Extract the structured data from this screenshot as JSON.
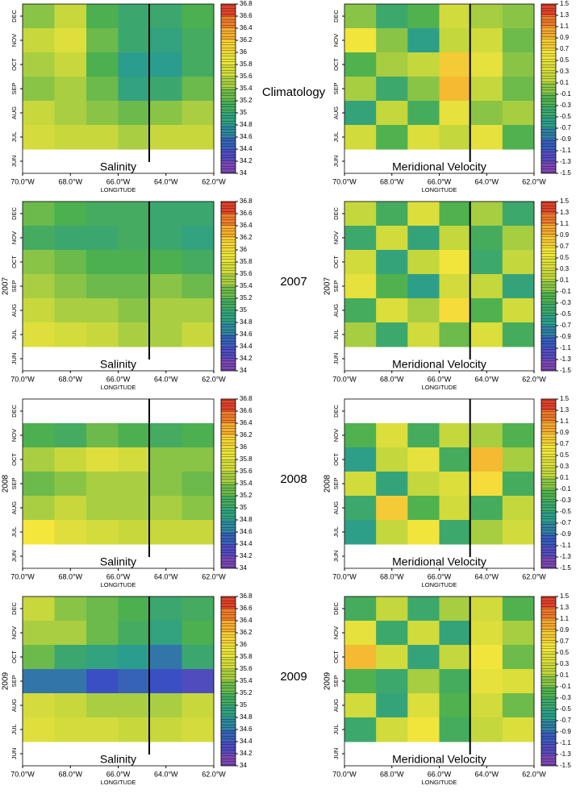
{
  "chart_data": [
    {
      "type": "heatmap",
      "title": "Salinity",
      "row_label": "Climatology",
      "xlabel": "LONGITUDE",
      "xlim": [
        -70,
        -62
      ],
      "xticks": [
        {
          "value": -70,
          "label": "70.0°W"
        },
        {
          "value": -68,
          "label": "68.0°W"
        },
        {
          "value": -66,
          "label": "66.0°W"
        },
        {
          "value": -64,
          "label": "64.0°W"
        },
        {
          "value": -62,
          "label": "62.0°W"
        }
      ],
      "categories": [
        "DEC",
        "NOV",
        "OCT",
        "SEP",
        "AUG",
        "JUL",
        "JUN"
      ],
      "z": [
        [
          35.4,
          35.6,
          35.2,
          35.0,
          35.0,
          35.2
        ],
        [
          35.6,
          35.8,
          35.3,
          35.0,
          34.9,
          35.1
        ],
        [
          35.5,
          35.6,
          35.2,
          34.8,
          34.8,
          35.1
        ],
        [
          35.4,
          35.5,
          35.3,
          34.9,
          35.0,
          35.3
        ],
        [
          35.6,
          35.5,
          35.4,
          35.3,
          35.4,
          35.5
        ],
        [
          35.7,
          35.6,
          35.6,
          35.5,
          35.6,
          35.6
        ],
        [
          null,
          null,
          null,
          null,
          null,
          null
        ]
      ],
      "zlim": [
        34,
        36.8
      ],
      "zticks": [
        34,
        34.2,
        34.4,
        34.6,
        34.8,
        35,
        35.2,
        35.4,
        35.6,
        35.8,
        36,
        36.2,
        36.4,
        36.6,
        36.8
      ],
      "colormap": [
        "#8e44ad",
        "#3b4fc4",
        "#2a9d8f",
        "#4cb050",
        "#c8d83c",
        "#f5e63c",
        "#f39c2c",
        "#d7262a"
      ],
      "vline": -64.7
    },
    {
      "type": "heatmap",
      "title": "Meridional Velocity",
      "xlabel": "LONGITUDE",
      "xlim": [
        -70,
        -62
      ],
      "xticks": [
        {
          "value": -70,
          "label": "70.0°W"
        },
        {
          "value": -68,
          "label": "68.0°W"
        },
        {
          "value": -66,
          "label": "66.0°W"
        },
        {
          "value": -64,
          "label": "64.0°W"
        },
        {
          "value": -62,
          "label": "62.0°W"
        }
      ],
      "categories": [
        "DEC",
        "NOV",
        "OCT",
        "SEP",
        "AUG",
        "JUL",
        "JUN"
      ],
      "z": [
        [
          0,
          -0.4,
          -0.2,
          0.3,
          0.1,
          0
        ],
        [
          0.6,
          0,
          -0.6,
          0.2,
          0.3,
          -0.1
        ],
        [
          -0.2,
          0.1,
          0.2,
          0.8,
          0.5,
          0
        ],
        [
          0.1,
          -0.4,
          0,
          0.9,
          0.2,
          -0.1
        ],
        [
          -0.5,
          0.2,
          -0.3,
          0.5,
          0,
          0.1
        ],
        [
          0.3,
          -0.2,
          0.4,
          0.2,
          0.5,
          -0.2
        ],
        [
          null,
          null,
          null,
          null,
          null,
          null
        ]
      ],
      "zlim": [
        -1.5,
        1.5
      ],
      "zticks": [
        -1.5,
        -1.3,
        -1.1,
        -0.9,
        -0.7,
        -0.5,
        -0.3,
        -0.1,
        0.1,
        0.3,
        0.5,
        0.7,
        0.9,
        1.1,
        1.3,
        1.5
      ],
      "colormap": [
        "#8e44ad",
        "#3b4fc4",
        "#2a9d8f",
        "#4cb050",
        "#c8d83c",
        "#f5e63c",
        "#f39c2c",
        "#d7262a"
      ],
      "vline": -64.7
    },
    {
      "type": "heatmap",
      "title": "Salinity",
      "row_label": "2007",
      "ylabel": "2007",
      "xlabel": "LONGITUDE",
      "xlim": [
        -70,
        -62
      ],
      "xticks": [
        {
          "value": -70,
          "label": "70.0°W"
        },
        {
          "value": -68,
          "label": "68.0°W"
        },
        {
          "value": -66,
          "label": "66.0°W"
        },
        {
          "value": -64,
          "label": "64.0°W"
        },
        {
          "value": -62,
          "label": "62.0°W"
        }
      ],
      "categories": [
        "DEC",
        "NOV",
        "OCT",
        "SEP",
        "AUG",
        "JUL",
        "JUN"
      ],
      "z": [
        [
          35.3,
          35.2,
          35.1,
          35.1,
          35.0,
          35.0
        ],
        [
          35.1,
          35.0,
          35.0,
          35.1,
          35.0,
          34.9
        ],
        [
          35.4,
          35.3,
          35.2,
          35.2,
          35.2,
          35.1
        ],
        [
          35.5,
          35.4,
          35.3,
          35.3,
          35.4,
          35.3
        ],
        [
          35.6,
          35.5,
          35.5,
          35.4,
          35.5,
          35.5
        ],
        [
          35.8,
          35.7,
          35.6,
          35.5,
          35.5,
          35.6
        ],
        [
          null,
          null,
          null,
          null,
          null,
          null
        ]
      ],
      "zlim": [
        34,
        36.8
      ],
      "zticks": [
        34,
        34.2,
        34.4,
        34.6,
        34.8,
        35,
        35.2,
        35.4,
        35.6,
        35.8,
        36,
        36.2,
        36.4,
        36.6,
        36.8
      ],
      "colormap": [
        "#8e44ad",
        "#3b4fc4",
        "#2a9d8f",
        "#4cb050",
        "#c8d83c",
        "#f5e63c",
        "#f39c2c",
        "#d7262a"
      ],
      "vline": -64.7
    },
    {
      "type": "heatmap",
      "title": "Meridional Velocity",
      "ylabel": "2007",
      "xlabel": "LONGITUDE",
      "xlim": [
        -70,
        -62
      ],
      "xticks": [
        {
          "value": -70,
          "label": "70.0°W"
        },
        {
          "value": -68,
          "label": "68.0°W"
        },
        {
          "value": -66,
          "label": "66.0°W"
        },
        {
          "value": -64,
          "label": "64.0°W"
        },
        {
          "value": -62,
          "label": "62.0°W"
        }
      ],
      "categories": [
        "DEC",
        "NOV",
        "OCT",
        "SEP",
        "AUG",
        "JUL",
        "JUN"
      ],
      "z": [
        [
          0.2,
          -0.3,
          0.4,
          -0.2,
          0.1,
          -0.4
        ],
        [
          -0.4,
          0.3,
          -0.5,
          0.2,
          -0.3,
          0.1
        ],
        [
          0.3,
          -0.5,
          0.2,
          0.6,
          -0.4,
          0.2
        ],
        [
          0.5,
          -0.2,
          -0.6,
          0.3,
          0.2,
          -0.5
        ],
        [
          -0.3,
          0.4,
          0.1,
          0.7,
          -0.2,
          0.3
        ],
        [
          0.1,
          -0.4,
          0.3,
          -0.1,
          0.4,
          -0.3
        ],
        [
          null,
          null,
          null,
          null,
          null,
          null
        ]
      ],
      "zlim": [
        -1.5,
        1.5
      ],
      "zticks": [
        -1.5,
        -1.3,
        -1.1,
        -0.9,
        -0.7,
        -0.5,
        -0.3,
        -0.1,
        0.1,
        0.3,
        0.5,
        0.7,
        0.9,
        1.1,
        1.3,
        1.5
      ],
      "colormap": [
        "#8e44ad",
        "#3b4fc4",
        "#2a9d8f",
        "#4cb050",
        "#c8d83c",
        "#f5e63c",
        "#f39c2c",
        "#d7262a"
      ],
      "vline": -64.7
    },
    {
      "type": "heatmap",
      "title": "Salinity",
      "row_label": "2008",
      "ylabel": "2008",
      "xlabel": "LONGITUDE",
      "xlim": [
        -70,
        -62
      ],
      "xticks": [
        {
          "value": -70,
          "label": "70.0°W"
        },
        {
          "value": -68,
          "label": "68.0°W"
        },
        {
          "value": -66,
          "label": "66.0°W"
        },
        {
          "value": -64,
          "label": "64.0°W"
        },
        {
          "value": -62,
          "label": "62.0°W"
        }
      ],
      "categories": [
        "DEC",
        "NOV",
        "OCT",
        "SEP",
        "AUG",
        "JUL",
        "JUN"
      ],
      "z": [
        [
          null,
          null,
          null,
          null,
          null,
          null
        ],
        [
          35.2,
          35.1,
          35.3,
          35.2,
          35.1,
          35.2
        ],
        [
          35.5,
          35.6,
          35.8,
          35.7,
          35.4,
          35.4
        ],
        [
          35.3,
          35.4,
          35.5,
          35.5,
          35.4,
          35.3
        ],
        [
          35.5,
          35.6,
          35.5,
          35.5,
          35.5,
          35.4
        ],
        [
          36.0,
          35.8,
          35.7,
          35.6,
          35.6,
          35.6
        ],
        [
          null,
          null,
          null,
          null,
          null,
          null
        ]
      ],
      "zlim": [
        34,
        36.8
      ],
      "zticks": [
        34,
        34.2,
        34.4,
        34.6,
        34.8,
        35,
        35.2,
        35.4,
        35.6,
        35.8,
        36,
        36.2,
        36.4,
        36.6,
        36.8
      ],
      "colormap": [
        "#8e44ad",
        "#3b4fc4",
        "#2a9d8f",
        "#4cb050",
        "#c8d83c",
        "#f5e63c",
        "#f39c2c",
        "#d7262a"
      ],
      "vline": -64.7
    },
    {
      "type": "heatmap",
      "title": "Meridional Velocity",
      "ylabel": "2008",
      "xlabel": "LONGITUDE",
      "xlim": [
        -70,
        -62
      ],
      "xticks": [
        {
          "value": -70,
          "label": "70.0°W"
        },
        {
          "value": -68,
          "label": "68.0°W"
        },
        {
          "value": -66,
          "label": "66.0°W"
        },
        {
          "value": -64,
          "label": "64.0°W"
        },
        {
          "value": -62,
          "label": "62.0°W"
        }
      ],
      "categories": [
        "DEC",
        "NOV",
        "OCT",
        "SEP",
        "AUG",
        "JUL",
        "JUN"
      ],
      "z": [
        [
          null,
          null,
          null,
          null,
          null,
          null
        ],
        [
          -0.2,
          0.4,
          -0.3,
          0.2,
          0.1,
          -0.2
        ],
        [
          -0.6,
          0.2,
          0.5,
          -0.3,
          0.9,
          0.1
        ],
        [
          0.3,
          -0.5,
          0.2,
          0.4,
          0.7,
          -0.3
        ],
        [
          -0.4,
          0.8,
          -0.2,
          0.3,
          -0.3,
          0.2
        ],
        [
          -0.6,
          0.2,
          0.6,
          -0.4,
          0.1,
          0.3
        ],
        [
          null,
          null,
          null,
          null,
          null,
          null
        ]
      ],
      "zlim": [
        -1.5,
        1.5
      ],
      "zticks": [
        -1.5,
        -1.3,
        -1.1,
        -0.9,
        -0.7,
        -0.5,
        -0.3,
        -0.1,
        0.1,
        0.3,
        0.5,
        0.7,
        0.9,
        1.1,
        1.3,
        1.5
      ],
      "colormap": [
        "#8e44ad",
        "#3b4fc4",
        "#2a9d8f",
        "#4cb050",
        "#c8d83c",
        "#f5e63c",
        "#f39c2c",
        "#d7262a"
      ],
      "vline": -64.7
    },
    {
      "type": "heatmap",
      "title": "Salinity",
      "row_label": "2009",
      "ylabel": "2009",
      "xlabel": "LONGITUDE",
      "xlim": [
        -70,
        -62
      ],
      "xticks": [
        {
          "value": -70,
          "label": "70.0°W"
        },
        {
          "value": -68,
          "label": "68.0°W"
        },
        {
          "value": -66,
          "label": "66.0°W"
        },
        {
          "value": -64,
          "label": "64.0°W"
        },
        {
          "value": -62,
          "label": "62.0°W"
        }
      ],
      "categories": [
        "DEC",
        "NOV",
        "OCT",
        "SEP",
        "AUG",
        "JUL",
        "JUN"
      ],
      "z": [
        [
          35.6,
          35.4,
          35.3,
          35.2,
          35.0,
          35.1
        ],
        [
          35.5,
          35.5,
          35.3,
          35.1,
          34.9,
          35.2
        ],
        [
          35.3,
          35.0,
          34.9,
          34.8,
          34.6,
          35.0
        ],
        [
          34.6,
          34.6,
          34.4,
          34.5,
          34.4,
          34.3
        ],
        [
          35.7,
          35.6,
          35.5,
          35.5,
          35.5,
          35.6
        ],
        [
          35.8,
          35.7,
          35.7,
          35.6,
          35.6,
          35.7
        ],
        [
          null,
          null,
          null,
          null,
          null,
          null
        ]
      ],
      "zlim": [
        34,
        36.8
      ],
      "zticks": [
        34,
        34.2,
        34.4,
        34.6,
        34.8,
        35,
        35.2,
        35.4,
        35.6,
        35.8,
        36,
        36.2,
        36.4,
        36.6,
        36.8
      ],
      "colormap": [
        "#8e44ad",
        "#3b4fc4",
        "#2a9d8f",
        "#4cb050",
        "#c8d83c",
        "#f5e63c",
        "#f39c2c",
        "#d7262a"
      ],
      "vline": -64.7
    },
    {
      "type": "heatmap",
      "title": "Meridional Velocity",
      "ylabel": "2009",
      "xlabel": "LONGITUDE",
      "xlim": [
        -70,
        -62
      ],
      "xticks": [
        {
          "value": -70,
          "label": "70.0°W"
        },
        {
          "value": -68,
          "label": "68.0°W"
        },
        {
          "value": -66,
          "label": "66.0°W"
        },
        {
          "value": -64,
          "label": "64.0°W"
        },
        {
          "value": -62,
          "label": "62.0°W"
        }
      ],
      "categories": [
        "DEC",
        "NOV",
        "OCT",
        "SEP",
        "AUG",
        "JUL",
        "JUN"
      ],
      "z": [
        [
          -0.3,
          0.2,
          -0.4,
          0.1,
          0.3,
          -0.2
        ],
        [
          0.5,
          -0.4,
          0.3,
          -0.5,
          0.4,
          0.1
        ],
        [
          0.9,
          0.3,
          -0.5,
          0.2,
          0.6,
          -0.1
        ],
        [
          -0.2,
          -0.4,
          0.1,
          -0.3,
          0.5,
          0.4
        ],
        [
          0.3,
          -0.5,
          0.4,
          -0.2,
          0.3,
          -0.1
        ],
        [
          -0.4,
          0.3,
          0.6,
          -0.3,
          0.2,
          0.4
        ],
        [
          null,
          null,
          null,
          null,
          null,
          null
        ]
      ],
      "zlim": [
        -1.5,
        1.5
      ],
      "zticks": [
        -1.5,
        -1.3,
        -1.1,
        -0.9,
        -0.7,
        -0.5,
        -0.3,
        -0.1,
        0.1,
        0.3,
        0.5,
        0.7,
        0.9,
        1.1,
        1.3,
        1.5
      ],
      "colormap": [
        "#8e44ad",
        "#3b4fc4",
        "#2a9d8f",
        "#4cb050",
        "#c8d83c",
        "#f5e63c",
        "#f39c2c",
        "#d7262a"
      ],
      "vline": -64.7
    }
  ]
}
